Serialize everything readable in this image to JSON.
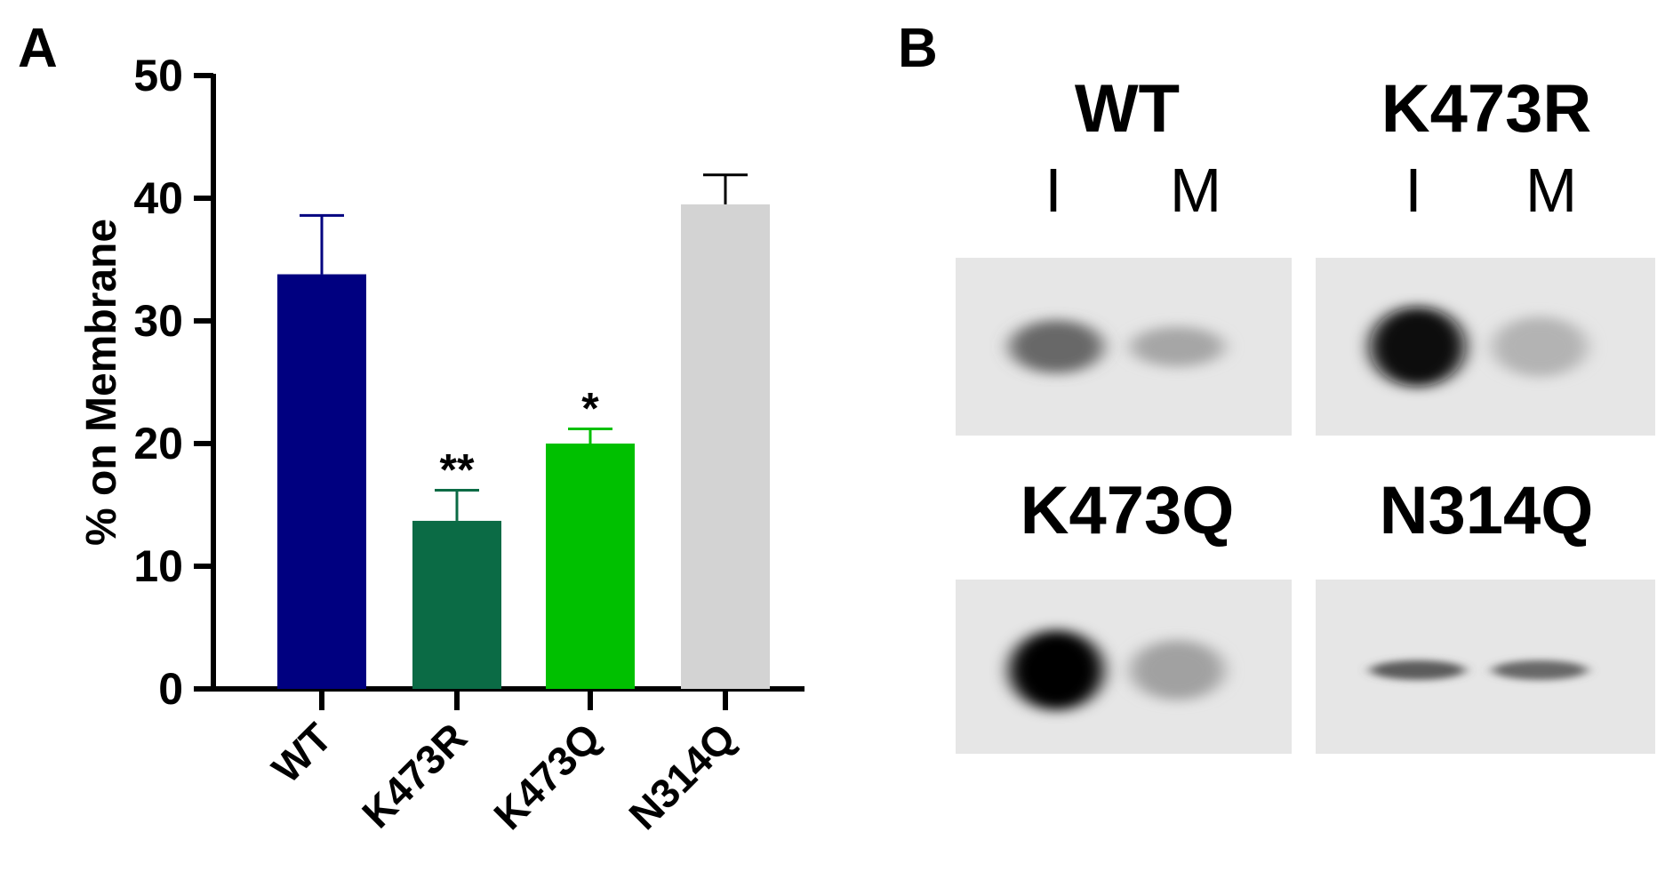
{
  "panels": {
    "a_label": "A",
    "b_label": "B"
  },
  "chart_data": {
    "type": "bar",
    "ylabel": "% on Membrane",
    "xlabel": "",
    "ylim": [
      0,
      50
    ],
    "yticks": [
      0,
      10,
      20,
      30,
      40,
      50
    ],
    "categories": [
      "WT",
      "K473R",
      "K473Q",
      "N314Q"
    ],
    "values": [
      33.8,
      13.7,
      20.0,
      39.5
    ],
    "errors": [
      4.8,
      2.5,
      1.2,
      2.4
    ],
    "significance": [
      "",
      "**",
      "*",
      ""
    ],
    "colors": [
      "#000080",
      "#0b6b45",
      "#00c000",
      "#d3d3d3"
    ],
    "grid": false,
    "legend": "none"
  },
  "blots": [
    {
      "title": "WT",
      "lanes": [
        "I",
        "M"
      ],
      "input_intensity": 0.55,
      "membrane_intensity": 0.28
    },
    {
      "title": "K473R",
      "lanes": [
        "I",
        "M"
      ],
      "input_intensity": 0.95,
      "membrane_intensity": 0.22
    },
    {
      "title": "K473Q",
      "lanes": [],
      "input_intensity": 0.98,
      "membrane_intensity": 0.3
    },
    {
      "title": "N314Q",
      "lanes": [],
      "input_intensity": 0.6,
      "membrane_intensity": 0.55
    }
  ]
}
